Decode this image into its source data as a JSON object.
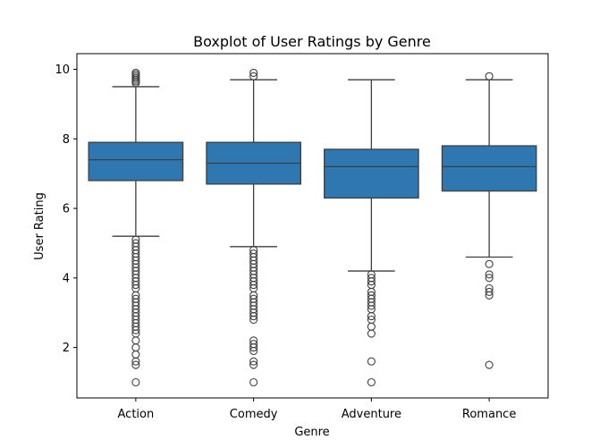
{
  "chart_data": {
    "type": "box",
    "title": "Boxplot of User Ratings by Genre",
    "xlabel": "Genre",
    "ylabel": "User Rating",
    "ylim": [
      0.55,
      10.45
    ],
    "yticks": [
      2,
      4,
      6,
      8,
      10
    ],
    "box_color": "#2e77b0",
    "line_color": "#3f3f3f",
    "grid": false,
    "categories": [
      "Action",
      "Comedy",
      "Adventure",
      "Romance"
    ],
    "boxes": [
      {
        "category": "Action",
        "whisker_low": 5.2,
        "q1": 6.8,
        "median": 7.4,
        "q3": 7.9,
        "whisker_high": 9.5,
        "outliers": [
          9.6,
          9.65,
          9.7,
          9.75,
          9.8,
          9.85,
          9.9,
          5.1,
          5.0,
          4.9,
          4.8,
          4.7,
          4.6,
          4.5,
          4.4,
          4.3,
          4.2,
          4.1,
          4.0,
          3.9,
          3.8,
          3.7,
          3.5,
          3.4,
          3.3,
          3.2,
          3.1,
          3.0,
          2.9,
          2.8,
          2.7,
          2.6,
          2.5,
          2.4,
          2.2,
          2.0,
          1.8,
          1.6,
          1.5,
          1.0
        ]
      },
      {
        "category": "Comedy",
        "whisker_low": 4.9,
        "q1": 6.7,
        "median": 7.3,
        "q3": 7.9,
        "whisker_high": 9.7,
        "outliers": [
          9.8,
          9.9,
          4.8,
          4.7,
          4.6,
          4.5,
          4.4,
          4.3,
          4.2,
          4.1,
          4.0,
          3.9,
          3.8,
          3.7,
          3.5,
          3.4,
          3.3,
          3.2,
          3.1,
          3.0,
          2.9,
          2.8,
          2.2,
          2.1,
          2.0,
          1.9,
          1.6,
          1.5,
          1.0
        ]
      },
      {
        "category": "Adventure",
        "whisker_low": 4.2,
        "q1": 6.3,
        "median": 7.2,
        "q3": 7.7,
        "whisker_high": 9.7,
        "outliers": [
          4.1,
          4.0,
          3.9,
          3.8,
          3.6,
          3.5,
          3.4,
          3.3,
          3.2,
          3.1,
          2.9,
          2.8,
          2.6,
          2.4,
          1.6,
          1.0
        ]
      },
      {
        "category": "Romance",
        "whisker_low": 4.6,
        "q1": 6.5,
        "median": 7.2,
        "q3": 7.8,
        "whisker_high": 9.7,
        "outliers": [
          9.8,
          4.4,
          4.1,
          4.0,
          3.7,
          3.6,
          3.5,
          1.5
        ]
      }
    ]
  }
}
